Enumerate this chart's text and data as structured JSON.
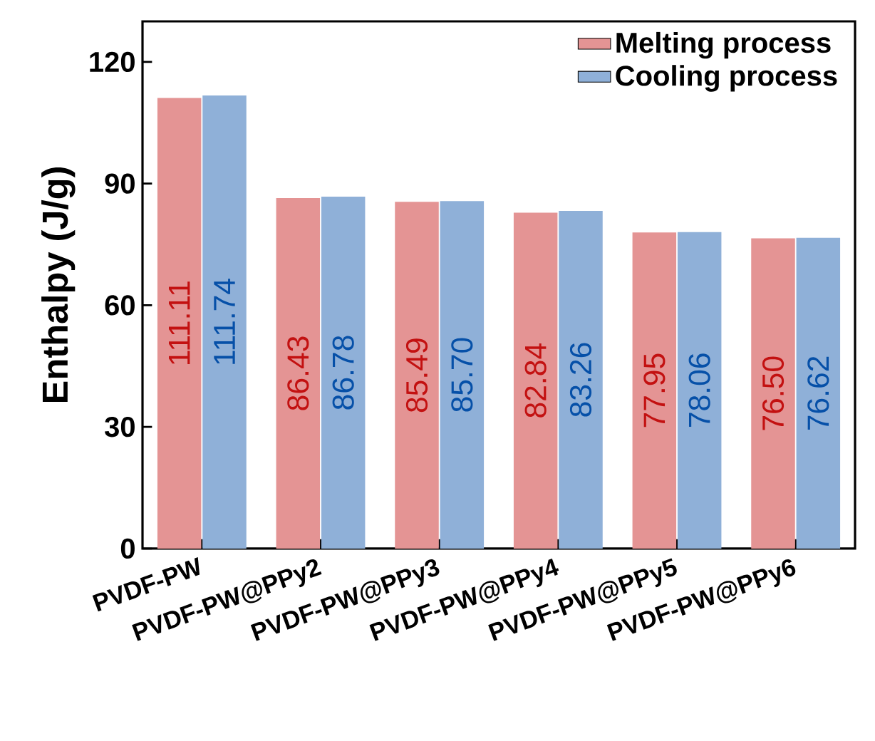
{
  "chart_data": {
    "type": "bar",
    "ylabel": "Enthalpy (J/g)",
    "categories": [
      "PVDF-PW",
      "PVDF-PW@PPy2",
      "PVDF-PW@PPy3",
      "PVDF-PW@PPy4",
      "PVDF-PW@PPy5",
      "PVDF-PW@PPy6"
    ],
    "series": [
      {
        "name": "Melting process",
        "color": "#e49494",
        "values": [
          111.11,
          86.43,
          85.49,
          82.84,
          77.95,
          76.5
        ],
        "value_labels": [
          "111.11",
          "86.43",
          "85.49",
          "82.84",
          "77.95",
          "76.50"
        ]
      },
      {
        "name": "Cooling process",
        "color": "#8fb0d8",
        "values": [
          111.74,
          86.78,
          85.7,
          83.26,
          78.06,
          76.62
        ],
        "value_labels": [
          "111.74",
          "86.78",
          "85.70",
          "83.26",
          "78.06",
          "76.62"
        ]
      }
    ],
    "ylim": [
      0,
      130
    ],
    "yticks": [
      0,
      30,
      60,
      90,
      120
    ],
    "legend": "top right",
    "grid": false
  }
}
